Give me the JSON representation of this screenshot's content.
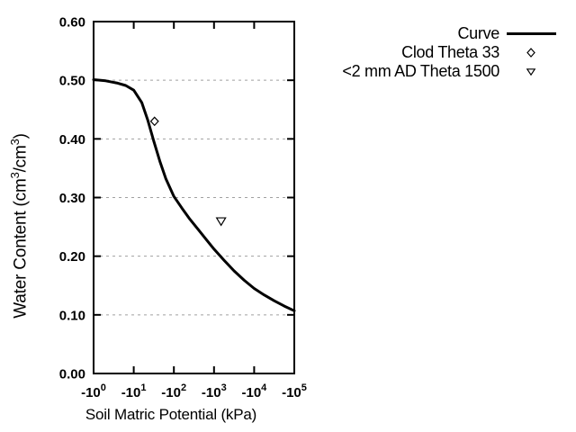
{
  "chart_data": {
    "type": "line",
    "title": "",
    "xlabel": "Soil Matric Potential (kPa)",
    "ylabel_plain": "Water Content (cm3/cm3)",
    "ylabel_parts": [
      {
        "text": "Water Content (cm"
      },
      {
        "text": "3",
        "sup": true
      },
      {
        "text": "/cm"
      },
      {
        "text": "3",
        "sup": true
      },
      {
        "text": ")"
      }
    ],
    "x_axis": {
      "scale": "log10-of-negative-kPa",
      "decade_min": 0,
      "decade_max": 5,
      "ticks": [
        {
          "base": "-10",
          "exp": "0",
          "decade": 0
        },
        {
          "base": "-10",
          "exp": "1",
          "decade": 1
        },
        {
          "base": "-10",
          "exp": "2",
          "decade": 2
        },
        {
          "base": "-10",
          "exp": "3",
          "decade": 3
        },
        {
          "base": "-10",
          "exp": "4",
          "decade": 4
        },
        {
          "base": "-10",
          "exp": "5",
          "decade": 5
        }
      ]
    },
    "y_axis": {
      "min": 0.0,
      "max": 0.6,
      "ticks": [
        {
          "label": "0.00",
          "value": 0.0
        },
        {
          "label": "0.10",
          "value": 0.1
        },
        {
          "label": "0.20",
          "value": 0.2
        },
        {
          "label": "0.30",
          "value": 0.3
        },
        {
          "label": "0.40",
          "value": 0.4
        },
        {
          "label": "0.50",
          "value": 0.5
        },
        {
          "label": "0.60",
          "value": 0.6
        }
      ],
      "grid_values": [
        0.1,
        0.2,
        0.3,
        0.4,
        0.5
      ]
    },
    "series": [
      {
        "name": "Curve",
        "type": "line",
        "points_decade_theta": [
          [
            0.0,
            0.501
          ],
          [
            0.3,
            0.499
          ],
          [
            0.6,
            0.495
          ],
          [
            0.8,
            0.491
          ],
          [
            1.0,
            0.483
          ],
          [
            1.2,
            0.462
          ],
          [
            1.35,
            0.432
          ],
          [
            1.5,
            0.396
          ],
          [
            1.65,
            0.362
          ],
          [
            1.8,
            0.332
          ],
          [
            2.0,
            0.302
          ],
          [
            2.2,
            0.282
          ],
          [
            2.4,
            0.263
          ],
          [
            2.6,
            0.246
          ],
          [
            2.8,
            0.229
          ],
          [
            3.0,
            0.212
          ],
          [
            3.25,
            0.193
          ],
          [
            3.5,
            0.175
          ],
          [
            3.75,
            0.159
          ],
          [
            4.0,
            0.145
          ],
          [
            4.25,
            0.134
          ],
          [
            4.5,
            0.124
          ],
          [
            4.75,
            0.115
          ],
          [
            5.0,
            0.107
          ]
        ]
      },
      {
        "name": "Clod Theta 33",
        "type": "scatter",
        "marker": "diamond",
        "points": [
          {
            "kpa": -33,
            "theta": 0.43
          }
        ]
      },
      {
        "name": "<2 mm AD Theta 1500",
        "type": "scatter",
        "marker": "triangle-down",
        "points": [
          {
            "kpa": -1500,
            "theta": 0.26
          }
        ]
      }
    ],
    "legend": {
      "position": "top-right-outside",
      "entries": [
        {
          "label": "Curve",
          "symbol": "line"
        },
        {
          "label": "Clod Theta 33",
          "symbol": "diamond"
        },
        {
          "label": "<2 mm AD Theta 1500",
          "symbol": "triangle-down"
        }
      ]
    },
    "colors": {
      "line": "#000000",
      "grid": "#a0a0a0",
      "background": "#ffffff",
      "text": "#000000"
    }
  }
}
